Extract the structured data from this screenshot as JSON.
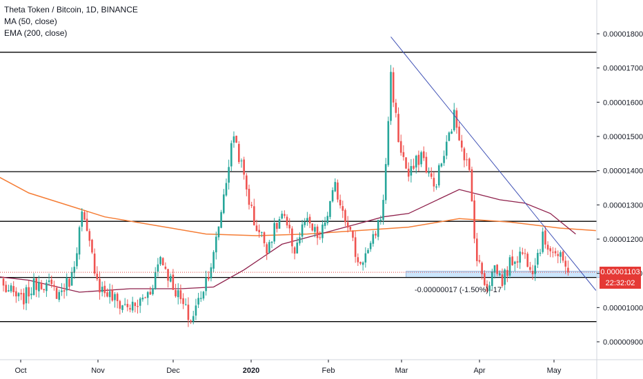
{
  "legend": {
    "title": "Theta Token / Bitcoin, 1D, BINANCE",
    "ma": "MA (50, close)",
    "ema": "EMA (200, close)"
  },
  "colors": {
    "up": "#26a69a",
    "down": "#ef5350",
    "ma": "#8e1f4a",
    "ema": "#f57c34",
    "trendline": "#3f51b5",
    "hline": "#000000",
    "price_badge": "#e53935",
    "timer_badge": "#e53935",
    "zone": "#bbdefb"
  },
  "price_label": "0.00001103",
  "timer_label": "22:32:02",
  "measure_label": "-0.00000017 (-1.50%) -17",
  "chart_data": {
    "type": "candlestick",
    "y_axis": {
      "side": "right",
      "ylim": [
        8.5e-06,
        1.9e-05
      ],
      "ticks": [
        "0.00000900",
        "0.00001000",
        "0.00001100",
        "0.00001200",
        "0.00001300",
        "0.00001400",
        "0.00001500",
        "0.00001600",
        "0.00001700",
        "0.00001800"
      ]
    },
    "x_axis": {
      "ticks": [
        "Oct",
        "Nov",
        "Dec",
        "2020",
        "Feb",
        "Mar",
        "Apr",
        "May"
      ],
      "bold": [
        "2020"
      ]
    },
    "horizontal_levels": [
      1.746e-05,
      1.397e-05,
      1.252e-05,
      1.088e-05,
      9.59e-06
    ],
    "last_price": 1.103e-05,
    "zone": {
      "from_day": 159,
      "to_day": 241,
      "low": 1.088e-05,
      "high": 1.106e-05
    },
    "trendline": {
      "from": [
        153,
        1.791e-05
      ],
      "to": [
        234,
        1.05e-05
      ]
    },
    "series": [
      {
        "name": "MA (50, close)",
        "from_day": 0,
        "closes_ref": "close"
      },
      {
        "name": "EMA (200, close)",
        "from_day": 0,
        "closes_ref": "close"
      }
    ],
    "anchors": [
      [
        0,
        1.06e-05
      ],
      [
        7,
        1.02e-05
      ],
      [
        14,
        1.08e-05
      ],
      [
        22,
        1.04e-05
      ],
      [
        27,
        1.09e-05
      ],
      [
        31,
        1.27e-05
      ],
      [
        34,
        1.18e-05
      ],
      [
        38,
        1.06e-05
      ],
      [
        46,
        1.01e-05
      ],
      [
        52,
        1e-05
      ],
      [
        58,
        1.05e-05
      ],
      [
        62,
        1.15e-05
      ],
      [
        66,
        1.08e-05
      ],
      [
        70,
        1.02e-05
      ],
      [
        74,
        9.6e-06
      ],
      [
        79,
        1.06e-05
      ],
      [
        83,
        1.15e-05
      ],
      [
        87,
        1.33e-05
      ],
      [
        91,
        1.51e-05
      ],
      [
        95,
        1.38e-05
      ],
      [
        99,
        1.25e-05
      ],
      [
        104,
        1.18e-05
      ],
      [
        110,
        1.27e-05
      ],
      [
        115,
        1.17e-05
      ],
      [
        119,
        1.25e-05
      ],
      [
        125,
        1.2e-05
      ],
      [
        131,
        1.35e-05
      ],
      [
        136,
        1.25e-05
      ],
      [
        140,
        1.13e-05
      ],
      [
        145,
        1.17e-05
      ],
      [
        150,
        1.3e-05
      ],
      [
        153,
        1.68e-05
      ],
      [
        156,
        1.49e-05
      ],
      [
        160,
        1.38e-05
      ],
      [
        165,
        1.45e-05
      ],
      [
        170,
        1.35e-05
      ],
      [
        175,
        1.47e-05
      ],
      [
        178,
        1.56e-05
      ],
      [
        181,
        1.48e-05
      ],
      [
        184,
        1.39e-05
      ],
      [
        187,
        1.14e-05
      ],
      [
        191,
        1.06e-05
      ],
      [
        194,
        1.12e-05
      ],
      [
        197,
        1.08e-05
      ],
      [
        201,
        1.14e-05
      ],
      [
        205,
        1.16e-05
      ],
      [
        209,
        1.12e-05
      ],
      [
        213,
        1.2e-05
      ],
      [
        217,
        1.17e-05
      ],
      [
        220,
        1.14e-05
      ],
      [
        223,
        1.103e-05
      ]
    ],
    "ema_anchors": [
      [
        -14,
        1.43e-05
      ],
      [
        10,
        1.335e-05
      ],
      [
        40,
        1.265e-05
      ],
      [
        60,
        1.24e-05
      ],
      [
        80,
        1.215e-05
      ],
      [
        100,
        1.21e-05
      ],
      [
        120,
        1.215e-05
      ],
      [
        140,
        1.225e-05
      ],
      [
        160,
        1.235e-05
      ],
      [
        180,
        1.26e-05
      ],
      [
        200,
        1.25e-05
      ],
      [
        220,
        1.232e-05
      ],
      [
        234,
        1.225e-05
      ]
    ],
    "ma_anchors": [
      [
        -14,
        1.1e-05
      ],
      [
        10,
        1.08e-05
      ],
      [
        30,
        1.045e-05
      ],
      [
        50,
        1.055e-05
      ],
      [
        70,
        1.055e-05
      ],
      [
        83,
        1.06e-05
      ],
      [
        95,
        1.11e-05
      ],
      [
        110,
        1.185e-05
      ],
      [
        125,
        1.215e-05
      ],
      [
        140,
        1.245e-05
      ],
      [
        150,
        1.265e-05
      ],
      [
        160,
        1.275e-05
      ],
      [
        170,
        1.31e-05
      ],
      [
        180,
        1.345e-05
      ],
      [
        188,
        1.33e-05
      ],
      [
        196,
        1.315e-05
      ],
      [
        206,
        1.305e-05
      ],
      [
        216,
        1.275e-05
      ],
      [
        226,
        1.215e-05
      ]
    ]
  }
}
